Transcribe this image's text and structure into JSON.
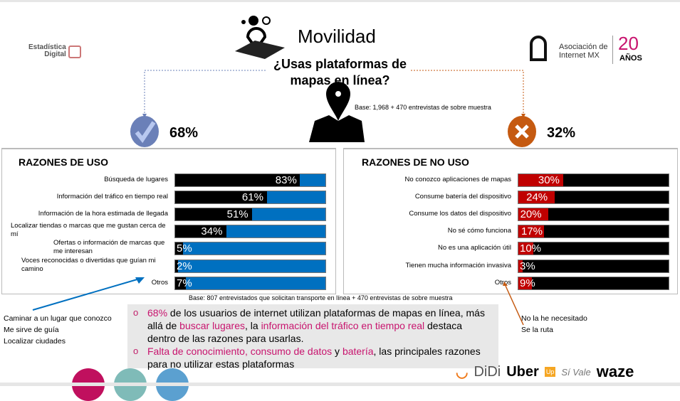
{
  "header": {
    "title": "Movilidad",
    "question": "¿Usas plataformas de mapas en línea?",
    "base": "Base: 1,968 + 470 entrevistas de sobre muestra",
    "yes_pct": "68%",
    "no_pct": "32%"
  },
  "logos": {
    "left": "Estadística Digital",
    "right_line1": "Asociación de",
    "right_line2": "Internet MX",
    "right_years": "20",
    "right_years_label": "AÑOS"
  },
  "chart_data": [
    {
      "type": "bar",
      "orientation": "horizontal",
      "stacked": true,
      "title": "RAZONES DE USO",
      "categories": [
        "Búsqueda de lugares",
        "Información del tráfico en tiempo real",
        "Información de la hora estimada de llegada",
        "Localizar tiendas o marcas que me gustan cerca de mí",
        "Ofertas o información de marcas que me interesan",
        "Voces reconocidas o divertidas que guían mi camino",
        "Otros"
      ],
      "values": [
        83,
        61,
        51,
        34,
        5,
        2,
        7
      ],
      "labels": [
        "83%",
        "61%",
        "51%",
        "34%",
        "5%",
        "2%",
        "7%"
      ],
      "xlim": [
        0,
        100
      ],
      "colors": {
        "value": "#000000",
        "remainder": "#0070c0"
      }
    },
    {
      "type": "bar",
      "orientation": "horizontal",
      "stacked": true,
      "title": "RAZONES DE NO USO",
      "categories": [
        "No conozco aplicaciones de mapas",
        "Consume batería del dispositivo",
        "Consume los datos del dispositivo",
        "No sé cómo funciona",
        "No es una aplicación útil",
        "Tienen mucha información invasiva",
        "Otros"
      ],
      "values": [
        30,
        24,
        20,
        17,
        10,
        3,
        9
      ],
      "labels": [
        "30%",
        "24%",
        "20%",
        "17%",
        "10%",
        "3%",
        "9%"
      ],
      "xlim": [
        0,
        100
      ],
      "colors": {
        "value": "#c00000",
        "remainder": "#000000"
      }
    }
  ],
  "base2": "Base: 807 entrevistados que solicitan transporte en línea + 470 entrevistas de sobre muestra",
  "otros_uso": [
    "Caminar a un lugar que conozco",
    "Me sirve de guía",
    "Localizar ciudades"
  ],
  "otros_no_uso": [
    "No la he necesitado",
    "Se la ruta"
  ],
  "insights": {
    "b1": {
      "p1": "68%",
      "p2": " de los usuarios de internet utilizan plataformas de mapas en línea, más allá de ",
      "p3": "buscar lugares",
      "p4": ", la ",
      "p5": "información del tráfico en tiempo real",
      "p6": " destaca dentro de las razones para usarlas."
    },
    "b2": {
      "p1": "Falta de conocimiento, consumo de datos",
      "p2": " y ",
      "p3": "batería",
      "p4": ", las principales razones para no utilizar estas plataformas"
    },
    "bullet": "o"
  },
  "brands": [
    "DiDi",
    "Uber",
    "Up",
    "Sí Vale",
    "waze"
  ],
  "colors": {
    "pink": "#c8146e",
    "blue_check": "#6b80b8",
    "orange_x": "#c55a11"
  }
}
